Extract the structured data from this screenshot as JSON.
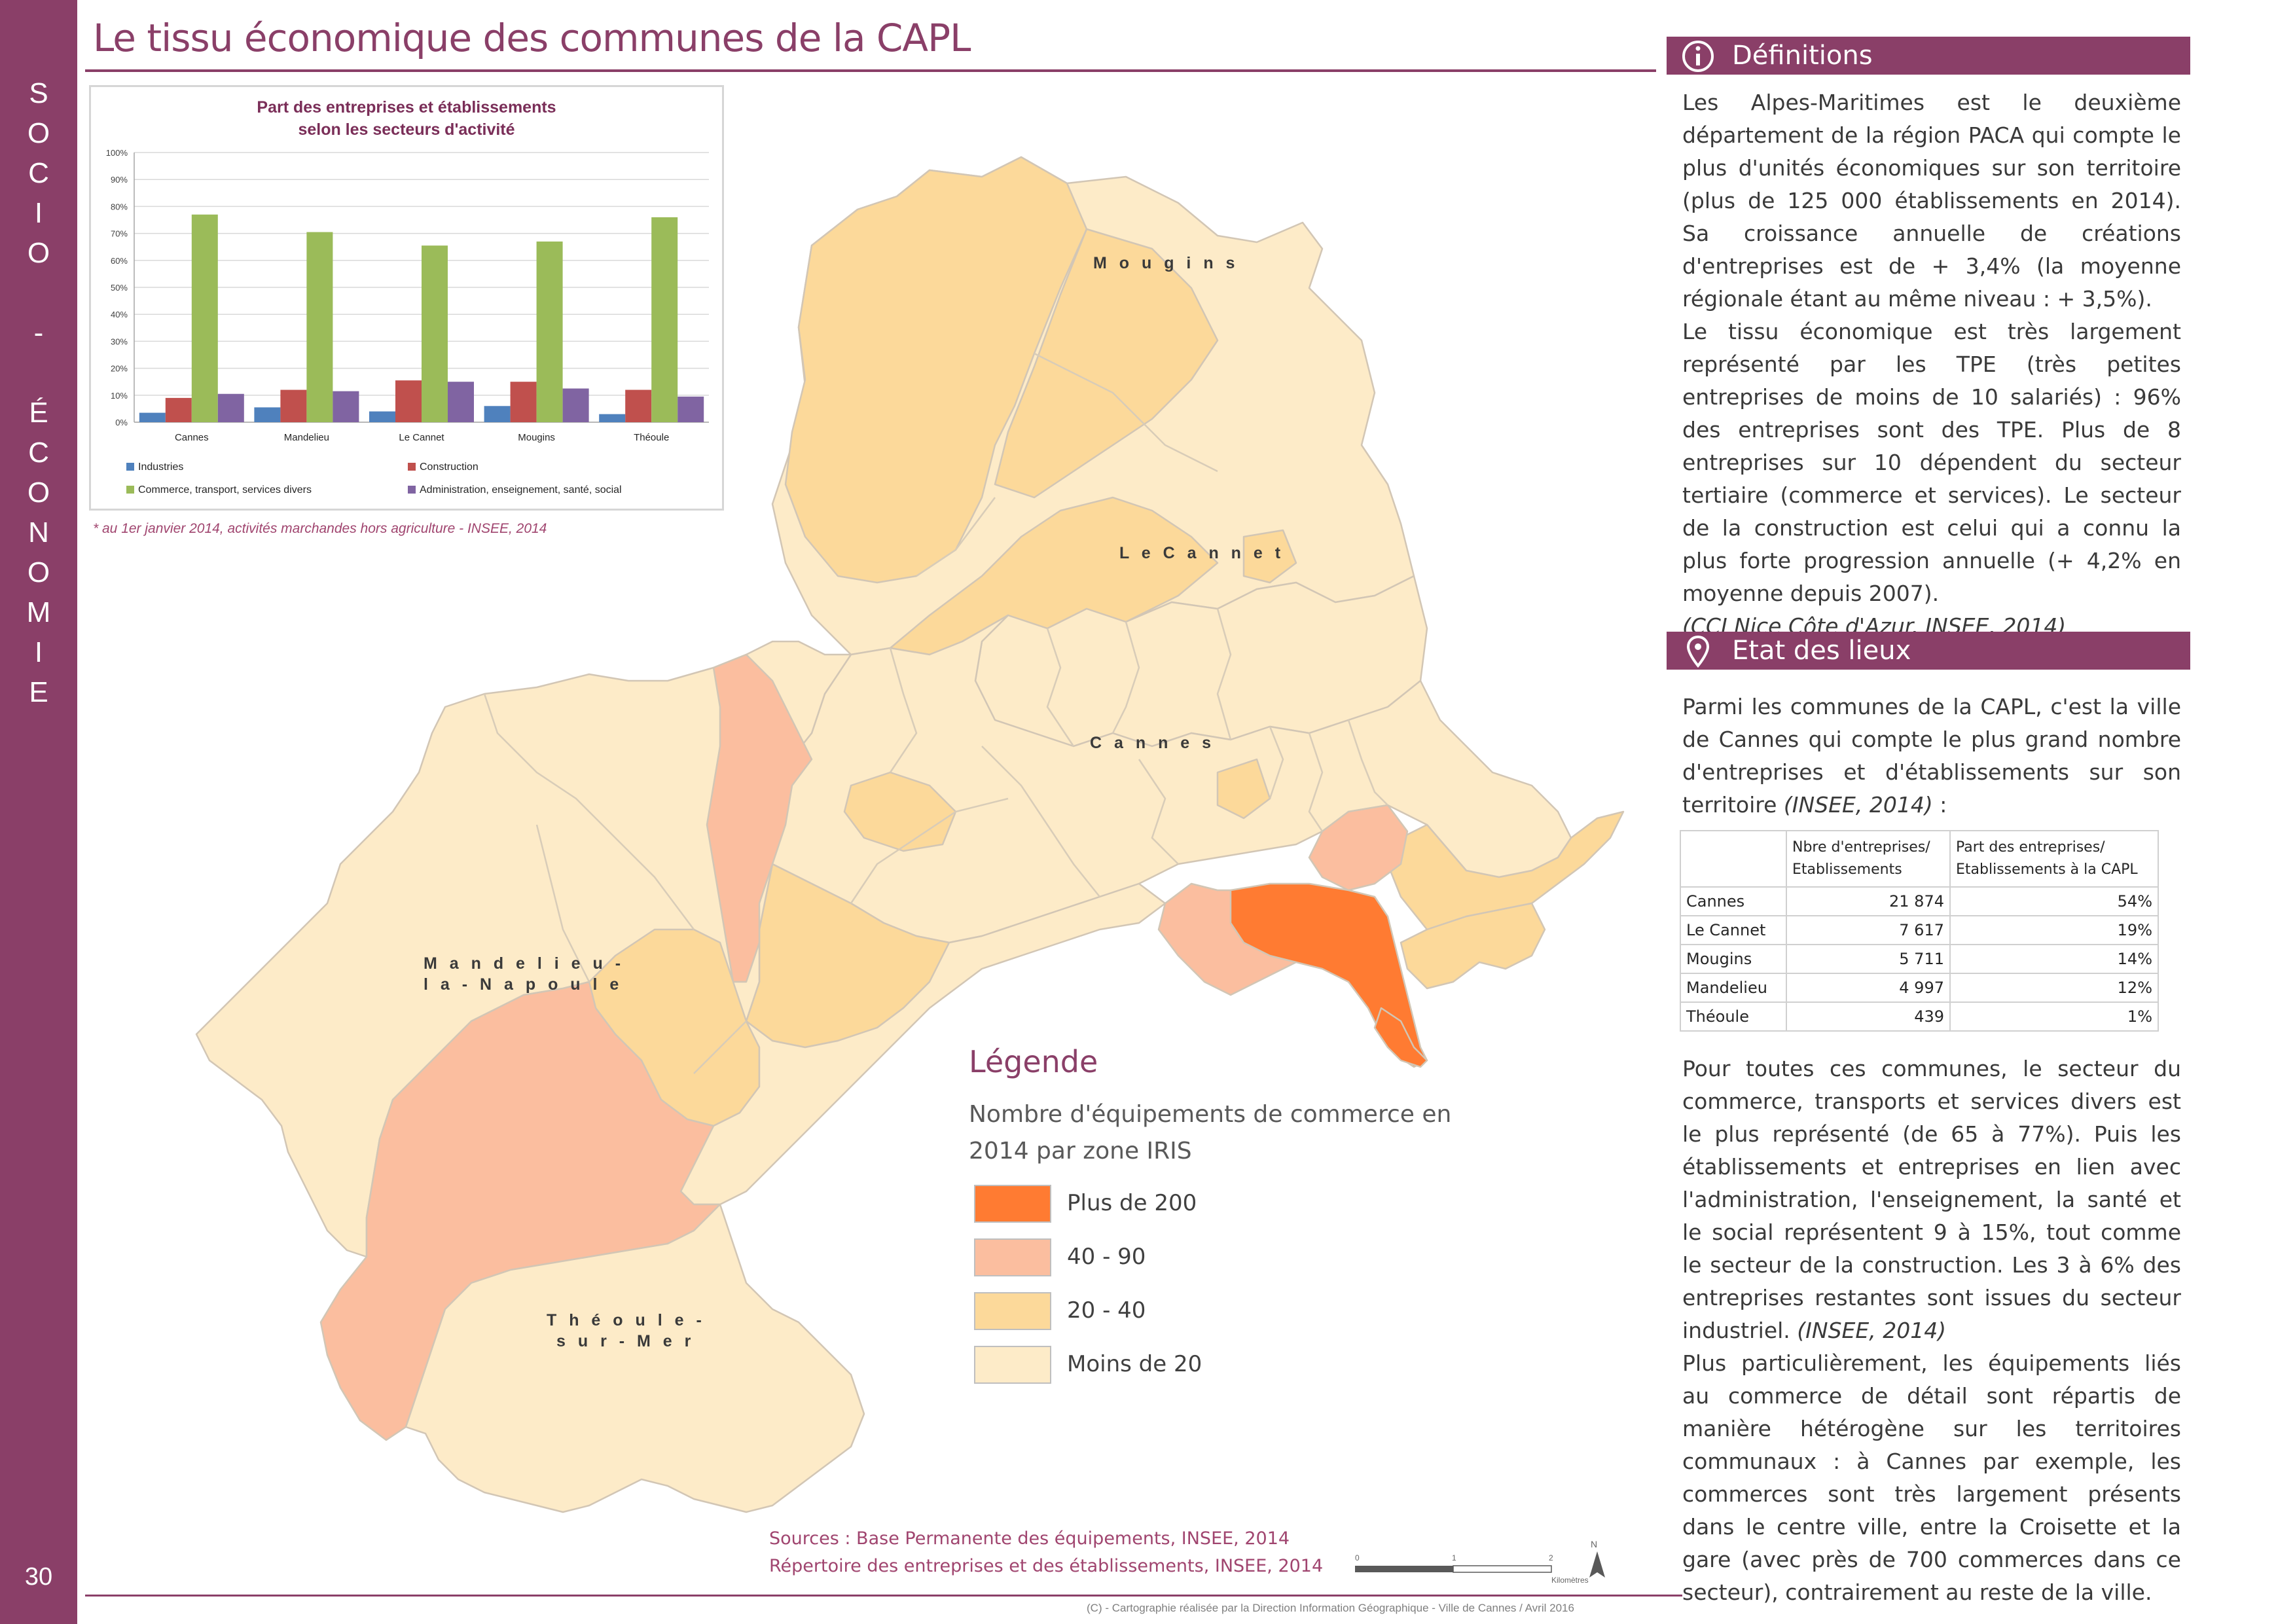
{
  "sidebar": {
    "letters": [
      "S",
      "O",
      "C",
      "I",
      "O",
      "",
      "-",
      "",
      "É",
      "C",
      "O",
      "N",
      "O",
      "M",
      "I",
      "E"
    ],
    "page_number": "30"
  },
  "page_title": "Le tissu économique des communes de la CAPL",
  "chart_data": {
    "type": "bar",
    "title_line1": "Part des entreprises et établissements",
    "title_line2": "selon les secteurs d'activité",
    "categories": [
      "Cannes",
      "Mandelieu",
      "Le Cannet",
      "Mougins",
      "Théoule"
    ],
    "y_ticks": [
      "0%",
      "10%",
      "20%",
      "30%",
      "40%",
      "50%",
      "60%",
      "70%",
      "80%",
      "90%",
      "100%"
    ],
    "ylim": [
      0,
      100
    ],
    "series": [
      {
        "name": "Industries",
        "color": "#4f81bd",
        "values": [
          3.5,
          5.5,
          4,
          6,
          3
        ]
      },
      {
        "name": "Construction",
        "color": "#c0504d",
        "values": [
          9,
          12,
          15.5,
          15,
          12
        ]
      },
      {
        "name": "Commerce, transport, services divers",
        "color": "#9bbb59",
        "values": [
          77,
          70.5,
          65.5,
          67,
          76
        ]
      },
      {
        "name": "Administration, enseignement, santé, social",
        "color": "#8064a2",
        "values": [
          10.5,
          11.5,
          15,
          12.5,
          9.5
        ]
      }
    ],
    "grid": true,
    "legend_position": "bottom"
  },
  "chart_note": "* au 1er janvier 2014, activités marchandes hors agriculture - INSEE, 2014",
  "map": {
    "labels": {
      "mougins": "M o u g i n s",
      "le_cannet": "L e   C a n n e t",
      "cannes": "C a n n e s",
      "mandelieu_1": "M a n d e l i e u -",
      "mandelieu_2": "l a - N a p o u l e",
      "theoule_1": "T h é o u l e -",
      "theoule_2": "s u r - M e r"
    },
    "colors": {
      "plus_200": "#ff7b32",
      "c40_90": "#fbbe9f",
      "c20_40": "#fcd99a",
      "moins_20": "#fdebc8",
      "border": "#cfcfcf"
    }
  },
  "legend": {
    "title": "Légende",
    "subtitle": "Nombre d'équipements de commerce en 2014 par zone IRIS",
    "items": [
      {
        "label": "Plus de 200",
        "color": "#ff7b32"
      },
      {
        "label": "40 - 90",
        "color": "#fbbe9f"
      },
      {
        "label": "20 - 40",
        "color": "#fcd99a"
      },
      {
        "label": "Moins de 20",
        "color": "#fdebc8"
      }
    ]
  },
  "sources": {
    "line1": "Sources : Base Permanente des équipements, INSEE, 2014",
    "line2": "Répertoire des entreprises et des établissements, INSEE, 2014"
  },
  "scale": {
    "tick0": "0",
    "tick1": "1",
    "tick2": "2",
    "unit": "Kilomètres",
    "north": "N"
  },
  "credit": "(C) - Cartographie réalisée par la Direction Information Géographique - Ville de Cannes / Avril 2016",
  "definitions": {
    "header": "Définitions",
    "para1": "Les Alpes-Maritimes est le deuxième département de la région PACA qui compte le plus d'unités économiques sur son territoire (plus de 125 000 établissements en 2014). Sa croissance annuelle de créations d'entreprises est de + 3,4% (la moyenne régionale étant au même niveau : + 3,5%).",
    "para2": "Le tissu économique est très largement représenté par les TPE (très petites entreprises de moins de 10 salariés) : 96% des entreprises sont des TPE. Plus de 8 entreprises sur 10 dépendent du secteur tertiaire (commerce et services). Le secteur de la construction est celui qui a connu la plus forte progression annuelle (+ 4,2% en moyenne depuis 2007).",
    "ref": "(CCI Nice Côte d'Azur, INSEE, 2014)"
  },
  "etat": {
    "header": "Etat des lieux",
    "intro": "Parmi les communes de la CAPL, c'est la ville de Cannes qui compte le plus grand nombre d'entreprises et d'établissements sur son territoire",
    "intro_ref": "(INSEE, 2014)",
    "intro_end": " :",
    "table": {
      "col1": "Nbre d'entreprises/ Etablissements",
      "col2": "Part des entreprises/ Etablissements à la CAPL",
      "rows": [
        {
          "name": "Cannes",
          "count": "21 874",
          "share": "54%"
        },
        {
          "name": "Le Cannet",
          "count": "7 617",
          "share": "19%"
        },
        {
          "name": "Mougins",
          "count": "5 711",
          "share": "14%"
        },
        {
          "name": "Mandelieu",
          "count": "4 997",
          "share": "12%"
        },
        {
          "name": "Théoule",
          "count": "439",
          "share": "1%"
        }
      ]
    },
    "para2": "Pour toutes ces communes, le secteur du commerce, transports et services divers est le plus représenté (de 65 à 77%). Puis les établissements et entreprises en lien avec l'administration, l'enseignement, la santé et le social représentent 9 à 15%, tout comme le secteur de la construction. Les 3 à 6% des entreprises restantes sont issues du secteur industriel.",
    "para2_ref": "(INSEE, 2014)",
    "para3": "Plus particulièrement, les équipements liés au commerce de détail sont répartis de manière hétérogène sur les territoires communaux : à Cannes par exemple, les commerces sont très largement présents dans le centre ville, entre la Croisette et la gare (avec près de 700 commerces dans ce secteur), contrairement au reste de la ville."
  }
}
